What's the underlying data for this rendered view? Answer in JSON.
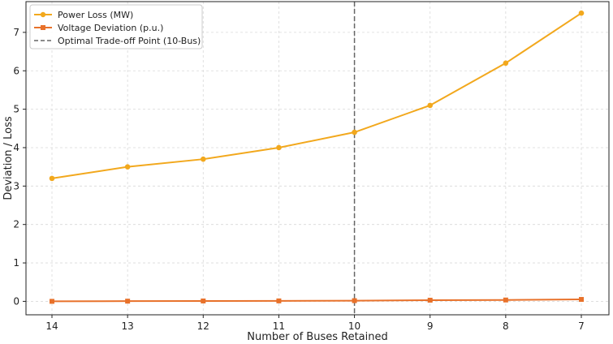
{
  "chart_data": {
    "type": "line",
    "title": "",
    "xlabel": "Number of Buses Retained",
    "ylabel": "Deviation / Loss",
    "categories": [
      "14",
      "13",
      "12",
      "11",
      "10",
      "9",
      "8",
      "7"
    ],
    "ylim": [
      -0.35,
      7.8
    ],
    "yticks": [
      0,
      1,
      2,
      3,
      4,
      5,
      6,
      7
    ],
    "grid": true,
    "legend_position": "top-left",
    "series": [
      {
        "name": "Power Loss (MW)",
        "color": "#f2a81d",
        "marker": "circle",
        "values": [
          3.2,
          3.5,
          3.7,
          4.0,
          4.4,
          5.1,
          6.2,
          7.5
        ]
      },
      {
        "name": "Voltage Deviation (p.u.)",
        "color": "#e8712a",
        "marker": "square",
        "values": [
          0.0,
          0.005,
          0.01,
          0.012,
          0.018,
          0.03,
          0.035,
          0.05
        ]
      }
    ],
    "reference_line": {
      "name": "Optimal Trade-off Point (10-Bus)",
      "x": "10",
      "color": "#666666",
      "style": "dashed"
    }
  }
}
